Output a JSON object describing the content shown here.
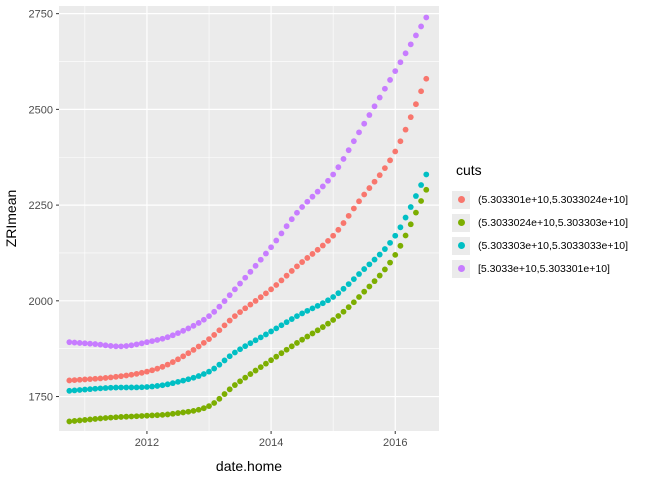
{
  "chart_data": {
    "type": "scatter",
    "xlabel": "date.home",
    "ylabel": "ZRImean",
    "x_ticks": [
      "2012",
      "2014",
      "2016"
    ],
    "y_ticks": [
      "1750",
      "2000",
      "2250",
      "2500",
      "2750"
    ],
    "xlim": [
      "2010-08-01",
      "2016-09-15"
    ],
    "ylim": [
      1660,
      2770
    ],
    "grid": true,
    "legend_title": "cuts",
    "legend_position": "right",
    "x_start": "2010-10",
    "x_end": "2016-07",
    "series": [
      {
        "name": "(5.303301e+10,5.3033024e+10]",
        "color": "#F8766D",
        "knots": [
          [
            "2010-10",
            1792
          ],
          [
            "2011-06",
            1800
          ],
          [
            "2012-01",
            1815
          ],
          [
            "2012-06",
            1840
          ],
          [
            "2013-01",
            1900
          ],
          [
            "2013-06",
            1960
          ],
          [
            "2014-01",
            2030
          ],
          [
            "2014-06",
            2090
          ],
          [
            "2015-01",
            2170
          ],
          [
            "2015-06",
            2260
          ],
          [
            "2016-01",
            2390
          ],
          [
            "2016-07",
            2580
          ]
        ]
      },
      {
        "name": "(5.3033024e+10,5.303303e+10]",
        "color": "#7CAE00",
        "knots": [
          [
            "2010-10",
            1685
          ],
          [
            "2011-06",
            1695
          ],
          [
            "2012-01",
            1700
          ],
          [
            "2012-06",
            1705
          ],
          [
            "2013-01",
            1725
          ],
          [
            "2013-06",
            1780
          ],
          [
            "2014-01",
            1845
          ],
          [
            "2014-06",
            1890
          ],
          [
            "2015-01",
            1950
          ],
          [
            "2015-06",
            2010
          ],
          [
            "2016-01",
            2120
          ],
          [
            "2016-07",
            2290
          ]
        ]
      },
      {
        "name": "(5.303303e+10,5.3033033e+10]",
        "color": "#00BFC4",
        "knots": [
          [
            "2010-10",
            1765
          ],
          [
            "2011-06",
            1773
          ],
          [
            "2012-01",
            1775
          ],
          [
            "2012-06",
            1785
          ],
          [
            "2013-01",
            1815
          ],
          [
            "2013-06",
            1865
          ],
          [
            "2014-01",
            1920
          ],
          [
            "2014-06",
            1960
          ],
          [
            "2015-01",
            2010
          ],
          [
            "2015-06",
            2070
          ],
          [
            "2016-01",
            2170
          ],
          [
            "2016-07",
            2330
          ]
        ]
      },
      {
        "name": "[5.3033e+10,5.303301e+10]",
        "color": "#C77CFF",
        "knots": [
          [
            "2010-10",
            1892
          ],
          [
            "2011-03",
            1887
          ],
          [
            "2011-08",
            1881
          ],
          [
            "2012-01",
            1892
          ],
          [
            "2012-06",
            1910
          ],
          [
            "2013-01",
            1960
          ],
          [
            "2013-06",
            2030
          ],
          [
            "2014-01",
            2140
          ],
          [
            "2014-06",
            2230
          ],
          [
            "2015-01",
            2330
          ],
          [
            "2015-06",
            2440
          ],
          [
            "2016-01",
            2600
          ],
          [
            "2016-07",
            2740
          ]
        ]
      }
    ]
  }
}
